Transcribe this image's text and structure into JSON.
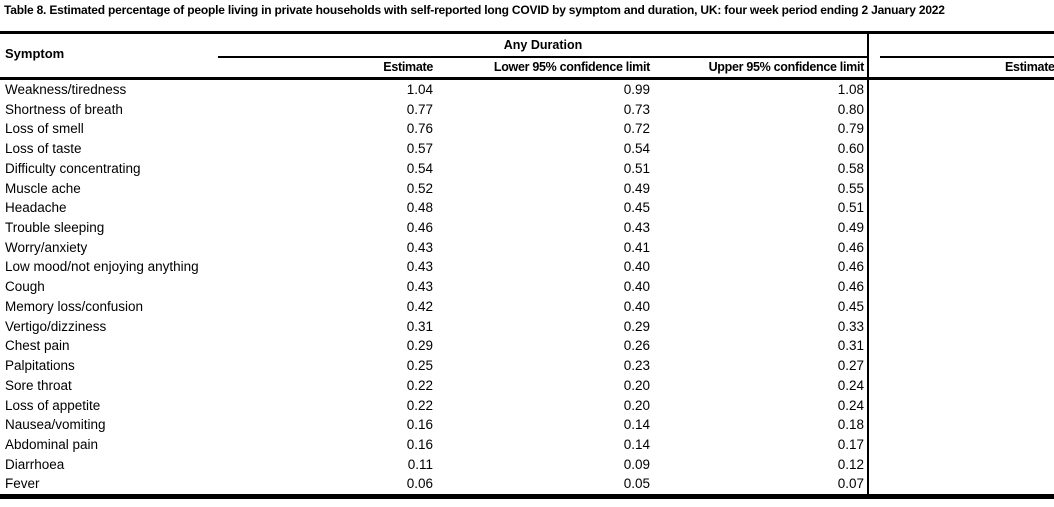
{
  "title": "Table 8. Estimated percentage of people living in private households with self-reported long COVID by symptom and duration, UK: four week period ending 2 January 2022",
  "table": {
    "symptom_header": "Symptom",
    "group_headers": {
      "any_duration": "Any Duration"
    },
    "column_headers": {
      "estimate": "Estimate",
      "lower": "Lower 95% confidence limit",
      "upper": "Upper 95% confidence limit",
      "next_group_estimate_truncated": "Estimate"
    },
    "rows": [
      {
        "symptom": "Weakness/tiredness",
        "estimate": "1.04",
        "lower": "0.99",
        "upper": "1.08"
      },
      {
        "symptom": "Shortness of breath",
        "estimate": "0.77",
        "lower": "0.73",
        "upper": "0.80"
      },
      {
        "symptom": "Loss of smell",
        "estimate": "0.76",
        "lower": "0.72",
        "upper": "0.79"
      },
      {
        "symptom": "Loss of taste",
        "estimate": "0.57",
        "lower": "0.54",
        "upper": "0.60"
      },
      {
        "symptom": "Difficulty concentrating",
        "estimate": "0.54",
        "lower": "0.51",
        "upper": "0.58"
      },
      {
        "symptom": "Muscle ache",
        "estimate": "0.52",
        "lower": "0.49",
        "upper": "0.55"
      },
      {
        "symptom": "Headache",
        "estimate": "0.48",
        "lower": "0.45",
        "upper": "0.51"
      },
      {
        "symptom": "Trouble sleeping",
        "estimate": "0.46",
        "lower": "0.43",
        "upper": "0.49"
      },
      {
        "symptom": "Worry/anxiety",
        "estimate": "0.43",
        "lower": "0.41",
        "upper": "0.46"
      },
      {
        "symptom": "Low mood/not enjoying anything",
        "estimate": "0.43",
        "lower": "0.40",
        "upper": "0.46"
      },
      {
        "symptom": "Cough",
        "estimate": "0.43",
        "lower": "0.40",
        "upper": "0.46"
      },
      {
        "symptom": "Memory loss/confusion",
        "estimate": "0.42",
        "lower": "0.40",
        "upper": "0.45"
      },
      {
        "symptom": "Vertigo/dizziness",
        "estimate": "0.31",
        "lower": "0.29",
        "upper": "0.33"
      },
      {
        "symptom": "Chest pain",
        "estimate": "0.29",
        "lower": "0.26",
        "upper": "0.31"
      },
      {
        "symptom": "Palpitations",
        "estimate": "0.25",
        "lower": "0.23",
        "upper": "0.27"
      },
      {
        "symptom": "Sore throat",
        "estimate": "0.22",
        "lower": "0.20",
        "upper": "0.24"
      },
      {
        "symptom": "Loss of appetite",
        "estimate": "0.22",
        "lower": "0.20",
        "upper": "0.24"
      },
      {
        "symptom": "Nausea/vomiting",
        "estimate": "0.16",
        "lower": "0.14",
        "upper": "0.18"
      },
      {
        "symptom": "Abdominal pain",
        "estimate": "0.16",
        "lower": "0.14",
        "upper": "0.17"
      },
      {
        "symptom": "Diarrhoea",
        "estimate": "0.11",
        "lower": "0.09",
        "upper": "0.12"
      },
      {
        "symptom": "Fever",
        "estimate": "0.06",
        "lower": "0.05",
        "upper": "0.07"
      }
    ]
  },
  "colors": {
    "text": "#000000",
    "background": "#ffffff",
    "rule": "#000000"
  }
}
